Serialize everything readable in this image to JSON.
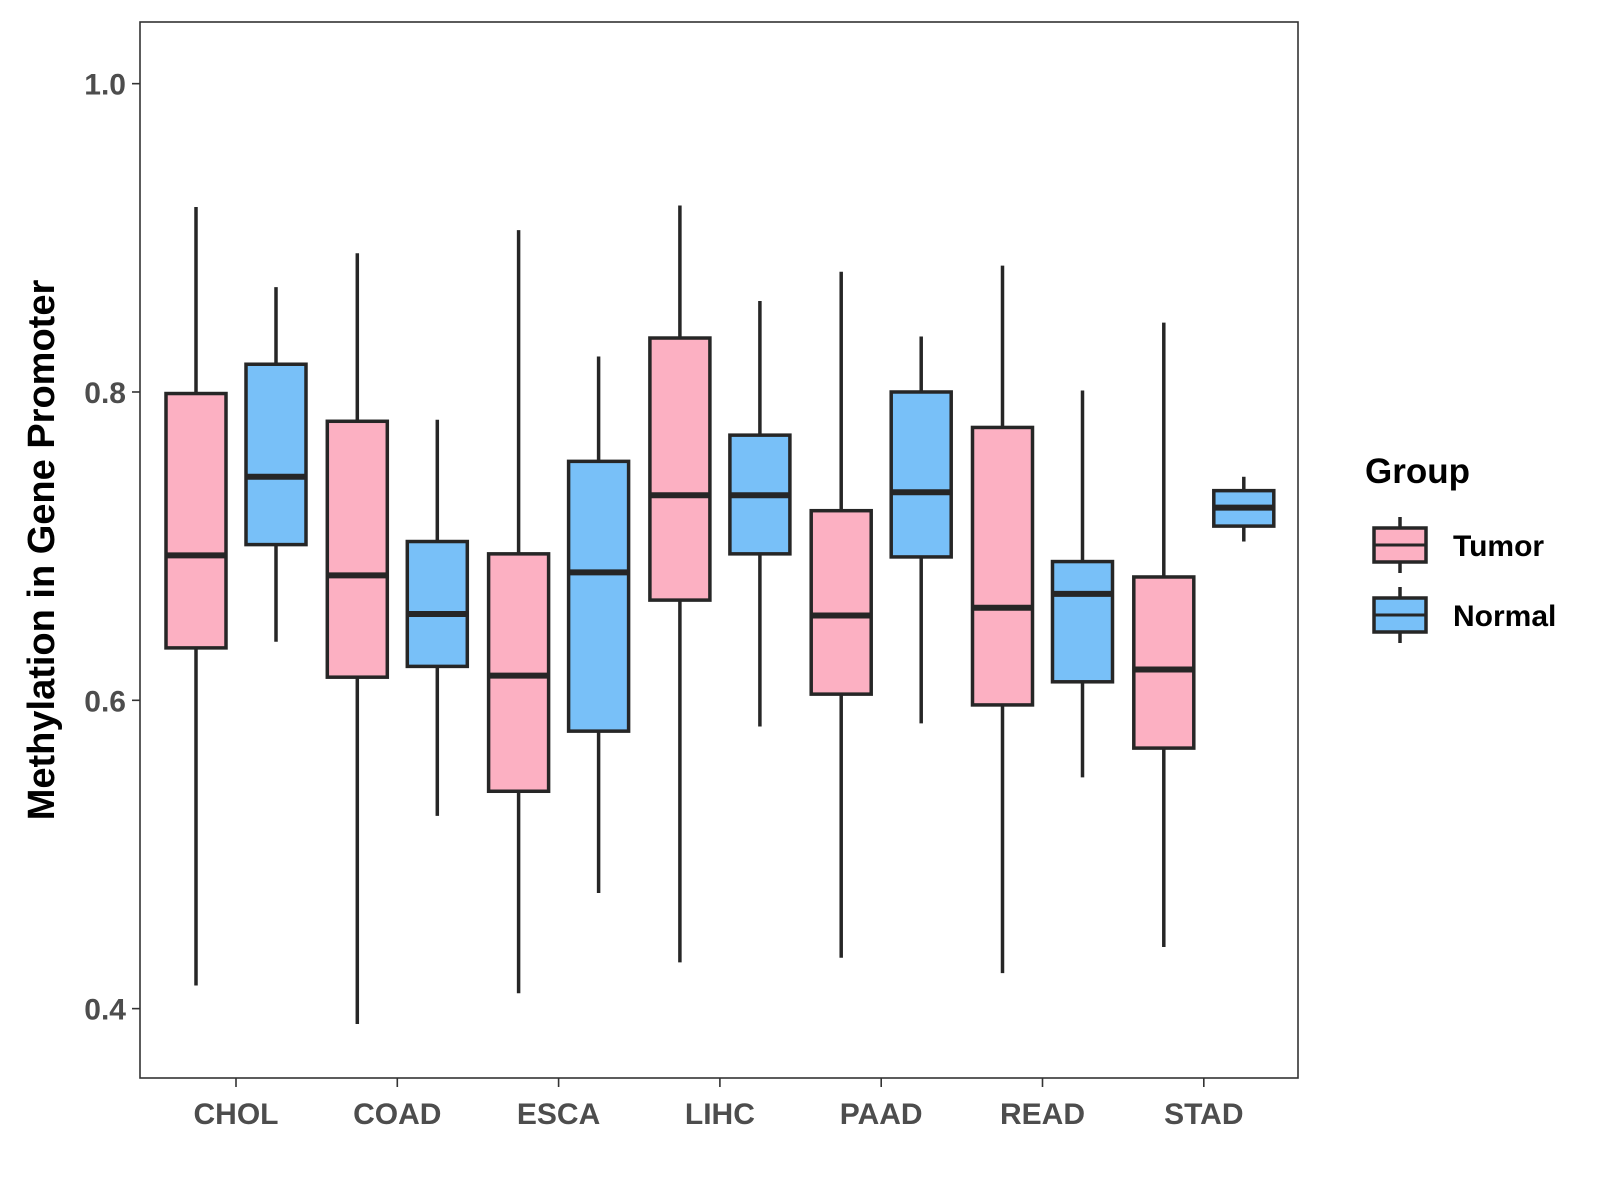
{
  "chart_data": {
    "type": "boxplot",
    "ylabel": "Methylation in Gene Promoter",
    "xlabel": "",
    "ylim": [
      0.355,
      1.04
    ],
    "yticks": [
      0.4,
      0.6,
      0.8,
      1.0
    ],
    "ytick_labels": [
      "0.4",
      "0.6",
      "0.8",
      "1.0"
    ],
    "categories": [
      "CHOL",
      "COAD",
      "ESCA",
      "LIHC",
      "PAAD",
      "READ",
      "STAD"
    ],
    "legend": {
      "title": "Group",
      "position": "right",
      "entries": [
        "Tumor",
        "Normal"
      ]
    },
    "colors": {
      "Tumor": "#fcb0c2",
      "Normal": "#78c0f8",
      "outline": "#262626"
    },
    "series": [
      {
        "name": "Tumor",
        "boxes": [
          {
            "category": "CHOL",
            "whisker_low": 0.415,
            "q1": 0.634,
            "median": 0.694,
            "q3": 0.799,
            "whisker_high": 0.92
          },
          {
            "category": "COAD",
            "whisker_low": 0.39,
            "q1": 0.615,
            "median": 0.681,
            "q3": 0.781,
            "whisker_high": 0.89
          },
          {
            "category": "ESCA",
            "whisker_low": 0.41,
            "q1": 0.541,
            "median": 0.616,
            "q3": 0.695,
            "whisker_high": 0.905
          },
          {
            "category": "LIHC",
            "whisker_low": 0.43,
            "q1": 0.665,
            "median": 0.733,
            "q3": 0.835,
            "whisker_high": 0.921
          },
          {
            "category": "PAAD",
            "whisker_low": 0.433,
            "q1": 0.604,
            "median": 0.655,
            "q3": 0.723,
            "whisker_high": 0.878
          },
          {
            "category": "READ",
            "whisker_low": 0.423,
            "q1": 0.597,
            "median": 0.66,
            "q3": 0.777,
            "whisker_high": 0.882
          },
          {
            "category": "STAD",
            "whisker_low": 0.44,
            "q1": 0.569,
            "median": 0.62,
            "q3": 0.68,
            "whisker_high": 0.845
          }
        ]
      },
      {
        "name": "Normal",
        "boxes": [
          {
            "category": "CHOL",
            "whisker_low": 0.638,
            "q1": 0.701,
            "median": 0.745,
            "q3": 0.818,
            "whisker_high": 0.868
          },
          {
            "category": "COAD",
            "whisker_low": 0.525,
            "q1": 0.622,
            "median": 0.656,
            "q3": 0.703,
            "whisker_high": 0.782
          },
          {
            "category": "ESCA",
            "whisker_low": 0.475,
            "q1": 0.58,
            "median": 0.683,
            "q3": 0.755,
            "whisker_high": 0.823
          },
          {
            "category": "LIHC",
            "whisker_low": 0.583,
            "q1": 0.695,
            "median": 0.733,
            "q3": 0.772,
            "whisker_high": 0.859
          },
          {
            "category": "PAAD",
            "whisker_low": 0.585,
            "q1": 0.693,
            "median": 0.735,
            "q3": 0.8,
            "whisker_high": 0.836
          },
          {
            "category": "READ",
            "whisker_low": 0.55,
            "q1": 0.612,
            "median": 0.669,
            "q3": 0.69,
            "whisker_high": 0.801
          },
          {
            "category": "STAD",
            "whisker_low": 0.703,
            "q1": 0.713,
            "median": 0.725,
            "q3": 0.736,
            "whisker_high": 0.745
          }
        ]
      }
    ]
  }
}
